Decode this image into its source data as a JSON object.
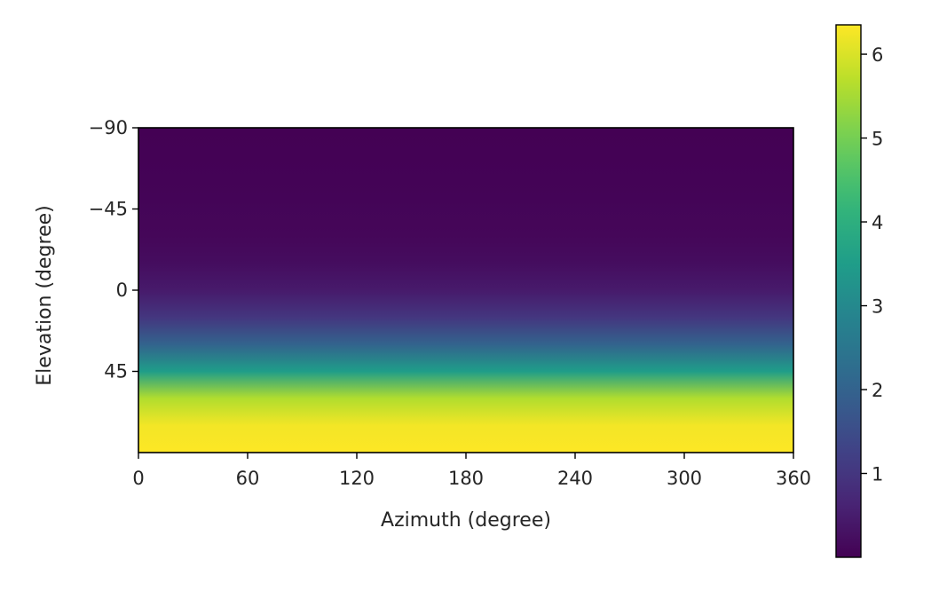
{
  "chart_data": {
    "type": "heatmap",
    "xlabel": "Azimuth (degree)",
    "ylabel": "Elevation (degree)",
    "xlim": [
      0,
      360
    ],
    "ylim": [
      -90,
      90
    ],
    "x_ticks": [
      0,
      60,
      120,
      180,
      240,
      300,
      360
    ],
    "y_ticks": [
      -90,
      -45,
      0,
      45
    ],
    "y_axis_inverted": true,
    "colormap": "viridis",
    "colorbar": {
      "range": [
        0,
        6.35
      ],
      "ticks": [
        1,
        2,
        3,
        4,
        5,
        6
      ]
    },
    "profile_by_elevation": {
      "elevation": [
        -90,
        -60,
        -30,
        -15,
        0,
        15,
        30,
        45,
        60,
        75,
        90
      ],
      "value": [
        0.0,
        0.03,
        0.1,
        0.22,
        0.45,
        1.0,
        2.0,
        3.5,
        5.6,
        6.25,
        6.35
      ]
    }
  }
}
